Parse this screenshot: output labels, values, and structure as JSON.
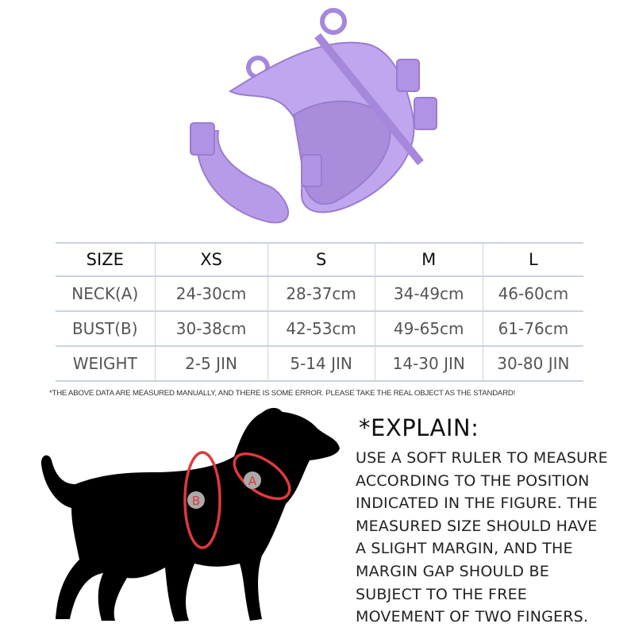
{
  "product_image": {
    "name": "purple dog harness",
    "color": "#b79ae6"
  },
  "size_table": {
    "headers": [
      "SIZE",
      "XS",
      "S",
      "M",
      "L"
    ],
    "rows": [
      {
        "label": "NECK(A)",
        "values": [
          "24-30cm",
          "28-37cm",
          "34-49cm",
          "46-60cm"
        ]
      },
      {
        "label": "BUST(B)",
        "values": [
          "30-38cm",
          "42-53cm",
          "49-65cm",
          "61-76cm"
        ]
      },
      {
        "label": "WEIGHT",
        "values": [
          "2-5 JIN",
          "5-14 JIN",
          "14-30 JIN",
          "30-80 JIN"
        ]
      }
    ]
  },
  "note": "*THE ABOVE DATA ARE MEASURED MANUALLY, AND THERE IS SOME ERROR. PLEASE TAKE THE REAL OBJECT AS THE STANDARD!",
  "diagram": {
    "marker_a": "A",
    "marker_b": "B",
    "marker_color": "#e0393a"
  },
  "explain": {
    "title": "*EXPLAIN:",
    "lines": [
      "USE A SOFT RULER TO MEASURE",
      "ACCORDING TO THE POSITION",
      "INDICATED IN THE FIGURE. THE",
      "MEASURED SIZE SHOULD HAVE",
      "A SLIGHT MARGIN, AND THE",
      "MARGIN GAP SHOULD BE",
      "SUBJECT TO THE FREE",
      "MOVEMENT OF TWO FINGERS."
    ]
  }
}
